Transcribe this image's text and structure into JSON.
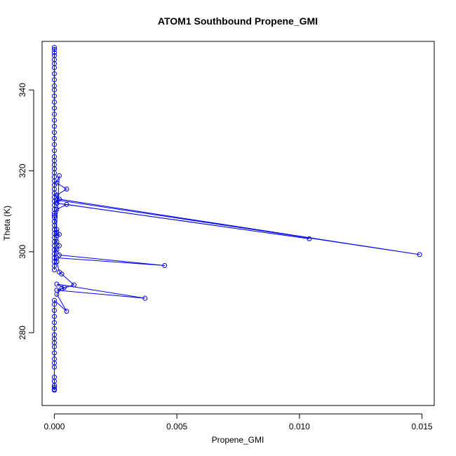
{
  "chart_data": {
    "type": "line",
    "title": "ATOM1 Southbound Propene_GMI",
    "xlabel": "Propene_GMI",
    "ylabel": "Theta (K)",
    "xlim": [
      -0.0005,
      0.0155
    ],
    "ylim": [
      262,
      352
    ],
    "xticks": [
      0.0,
      0.005,
      0.01,
      0.015
    ],
    "xtick_labels": [
      "0.000",
      "0.005",
      "0.010",
      "0.015"
    ],
    "yticks": [
      280,
      300,
      320,
      340
    ],
    "ytick_labels": [
      "280",
      "300",
      "320",
      "340"
    ],
    "grid": false,
    "legend": "none",
    "color": "#0000ff",
    "marker": "open-circle",
    "series": [
      {
        "x": [
          0.0,
          0.0,
          0.0,
          0.0,
          0.0,
          0.0,
          0.0,
          0.0,
          0.0,
          0.0,
          0.0,
          0.0,
          0.0,
          0.0,
          0.0,
          0.0,
          0.0,
          0.0,
          0.0,
          0.0,
          0.0,
          0.0,
          0.0,
          0.0,
          0.0,
          0.0,
          0.0,
          0.0,
          0.0,
          0.0,
          0.0,
          0.0,
          0.0,
          0.0,
          0.0,
          0.0,
          0.0,
          0.0,
          0.0,
          0.0,
          0.0,
          0.0,
          0.0,
          0.0,
          0.0,
          0.0,
          0.0,
          0.0,
          0.0,
          0.0,
          0.0002,
          0.0001,
          0.0005,
          0.0001,
          0.0002,
          0.0149,
          0.0001,
          0.0001,
          0.0104,
          0.0005,
          0.0001,
          0.0,
          0.0001,
          0.0001,
          0.0001,
          0.0002,
          0.0001,
          0.0002,
          0.0001,
          0.0002,
          0.0045,
          0.0001,
          0.0001,
          0.0002,
          0.0003,
          0.0008,
          0.0001,
          0.0037,
          0.0001,
          0.0004,
          0.0003,
          0.0001,
          0.0005,
          0.0,
          0.0,
          0.0,
          0.0,
          0.0,
          0.0,
          0.0,
          0.0,
          0.0,
          0.0,
          0.0,
          0.0,
          0.0,
          0.0,
          0.0,
          0.0,
          0.0,
          0.0,
          0.0,
          0.0,
          0.0
        ],
        "y": [
          350.5,
          350.0,
          349.2,
          348.5,
          347.5,
          346.5,
          345.5,
          344.0,
          342.5,
          341.0,
          340.0,
          338.5,
          337.0,
          335.5,
          334.0,
          332.5,
          331.0,
          329.5,
          328.0,
          326.5,
          325.0,
          323.5,
          322.5,
          321.5,
          320.5,
          319.5,
          318.5,
          317.5,
          316.5,
          315.5,
          314.5,
          313.5,
          312.5,
          311.5,
          310.5,
          309.5,
          308.5,
          307.5,
          306.5,
          305.5,
          304.5,
          303.5,
          302.5,
          301.5,
          300.5,
          299.5,
          298.5,
          297.5,
          296.5,
          295.5,
          318.8,
          317.0,
          315.5,
          314.0,
          313.0,
          299.3,
          312.8,
          312.0,
          303.2,
          311.7,
          310.5,
          309.0,
          305.5,
          304.8,
          304.0,
          304.3,
          302.5,
          301.5,
          300.5,
          299.2,
          296.6,
          298.5,
          297.5,
          295.0,
          294.5,
          291.8,
          290.5,
          288.5,
          292.0,
          291.2,
          290.9,
          289.5,
          285.3,
          288.0,
          287.0,
          285.5,
          284.0,
          282.5,
          281.0,
          279.5,
          278.5,
          277.5,
          276.5,
          275.0,
          273.5,
          272.5,
          271.5,
          269.0,
          268.0,
          267.0,
          266.5,
          266.0,
          265.8,
          265.8
        ]
      }
    ]
  }
}
